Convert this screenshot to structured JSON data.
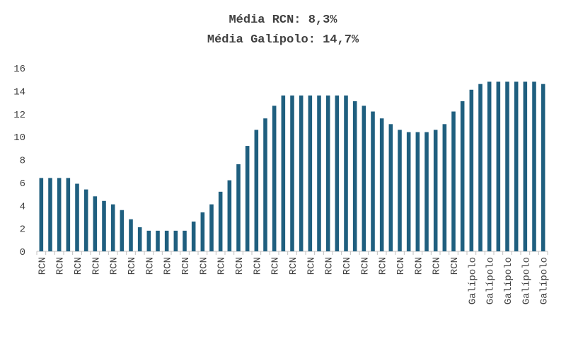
{
  "chart_data": {
    "type": "bar",
    "title": "Média RCN: 8,3%",
    "subtitle": "Média Galípolo: 14,7%",
    "categories": [
      "RCN",
      null,
      "RCN",
      null,
      "RCN",
      null,
      "RCN",
      null,
      "RCN",
      null,
      "RCN",
      null,
      "RCN",
      null,
      "RCN",
      null,
      "RCN",
      null,
      "RCN",
      null,
      "RCN",
      null,
      "RCN",
      null,
      "RCN",
      null,
      "RCN",
      null,
      "RCN",
      null,
      "RCN",
      null,
      "RCN",
      null,
      "RCN",
      null,
      "RCN",
      null,
      "RCN",
      null,
      "RCN",
      null,
      "RCN",
      null,
      "RCN",
      null,
      "RCN",
      null,
      "Galípolo",
      null,
      "Galípolo",
      null,
      "Galípolo",
      null,
      "Galípolo",
      null,
      "Galípolo"
    ],
    "values": [
      6.4,
      6.4,
      6.4,
      6.4,
      5.9,
      5.4,
      4.8,
      4.4,
      4.1,
      3.6,
      2.8,
      2.1,
      1.8,
      1.8,
      1.8,
      1.8,
      1.8,
      2.6,
      3.4,
      4.1,
      5.2,
      6.2,
      7.6,
      9.2,
      10.6,
      11.6,
      12.7,
      13.6,
      13.6,
      13.6,
      13.6,
      13.6,
      13.6,
      13.6,
      13.6,
      13.1,
      12.7,
      12.2,
      11.6,
      11.1,
      10.6,
      10.4,
      10.4,
      10.4,
      10.6,
      11.1,
      12.2,
      13.1,
      14.1,
      14.6,
      14.8,
      14.8,
      14.8,
      14.8,
      14.8,
      14.8,
      14.6
    ],
    "color": "#1f5f7f",
    "ylim": [
      0,
      16
    ],
    "yticks": [
      0,
      2,
      4,
      6,
      8,
      10,
      12,
      14,
      16
    ],
    "grid": false
  }
}
